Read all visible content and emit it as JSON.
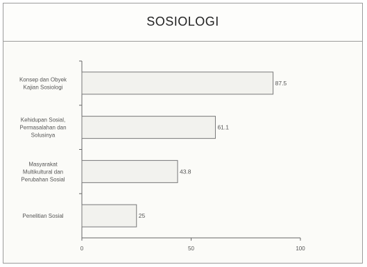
{
  "chart_data": {
    "type": "bar",
    "orientation": "horizontal",
    "title": "SOSIOLOGI",
    "categories": [
      [
        "Konsep dan Obyek",
        "Kajian Sosiologi"
      ],
      [
        "Kehidupan Sosial,",
        "Permasalahan dan",
        "Solusinya"
      ],
      [
        "Masyarakat",
        "Multikultural dan",
        "Perubahan Sosial"
      ],
      [
        "Penelitian Sosial"
      ]
    ],
    "values": [
      87.5,
      61.1,
      43.8,
      25
    ],
    "value_labels": [
      "87.5",
      "61.1",
      "43.8",
      "25"
    ],
    "xlim": [
      0,
      100
    ],
    "xticks": [
      "0",
      "50",
      "100"
    ],
    "grid": false,
    "bar_fill": "#f2f2ee",
    "bar_stroke": "#777777"
  }
}
